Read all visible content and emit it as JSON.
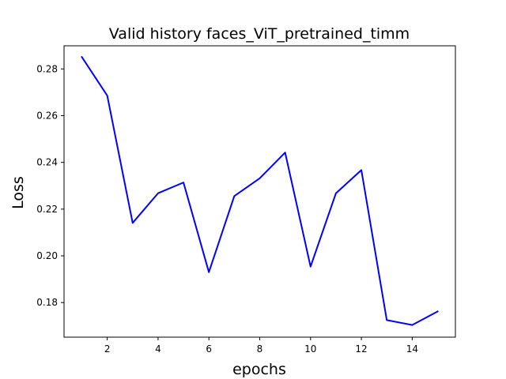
{
  "chart_data": {
    "type": "line",
    "title": "Valid history faces_ViT_pretrained_timm",
    "xlabel": "epochs",
    "ylabel": "Loss",
    "xlim": [
      0.3,
      15.7
    ],
    "ylim": [
      0.1652,
      0.2899
    ],
    "x_ticks": [
      2,
      4,
      6,
      8,
      10,
      12,
      14
    ],
    "y_ticks": [
      0.18,
      0.2,
      0.22,
      0.24,
      0.26,
      0.28
    ],
    "y_tick_format": 2,
    "grid": false,
    "series": [
      {
        "color": "#0000ff",
        "x": [
          1,
          2,
          3,
          4,
          5,
          6,
          7,
          8,
          9,
          10,
          11,
          12,
          13,
          14,
          15
        ],
        "y": [
          0.2851,
          0.2686,
          0.2141,
          0.2268,
          0.2314,
          0.193,
          0.2256,
          0.2332,
          0.2442,
          0.1954,
          0.2268,
          0.2367,
          0.1725,
          0.1704,
          0.1762
        ]
      }
    ]
  }
}
